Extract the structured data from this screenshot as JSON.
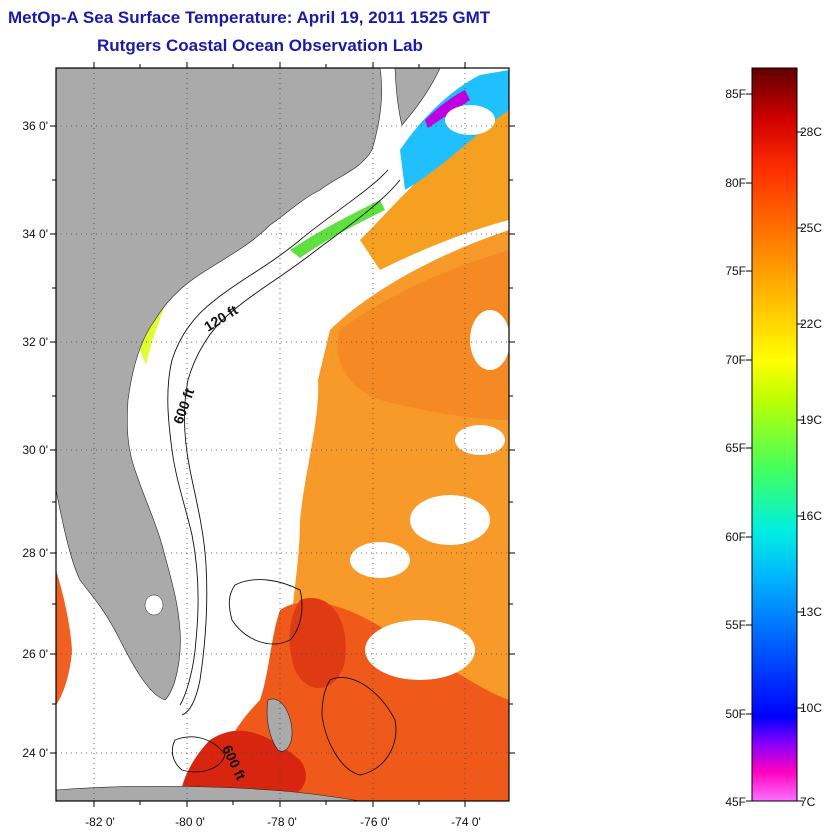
{
  "title": {
    "line1": "MetOp-A Sea Surface Temperature:  April 19, 2011 1525 GMT",
    "line2": "Rutgers Coastal Ocean Observation Lab"
  },
  "map": {
    "lat_labels": [
      "36 0'",
      "34 0'",
      "32 0'",
      "30 0'",
      "28 0'",
      "26 0'",
      "24 0'"
    ],
    "lon_labels": [
      "-82 0'",
      "-80 0'",
      "-78 0'",
      "-76 0'",
      "-74 0'"
    ],
    "isobath_labels": [
      "120 ft",
      "600 ft",
      "600 ft"
    ],
    "colors": {
      "land": "#aaaaaa",
      "cloud": "#ffffff",
      "gulf_stream": "#f07020",
      "shelf_water": "#f8a020"
    }
  },
  "colorbar": {
    "fahrenheit_labels": [
      "85F",
      "80F",
      "75F",
      "70F",
      "65F",
      "60F",
      "55F",
      "50F",
      "45F"
    ],
    "celsius_labels": [
      "28C",
      "25C",
      "22C",
      "19C",
      "16C",
      "13C",
      "10C",
      "7C"
    ],
    "colors": [
      "#6b0000",
      "#c00000",
      "#ff2000",
      "#ff7000",
      "#ffb000",
      "#ffff00",
      "#80ff00",
      "#00ffa0",
      "#00e0ff",
      "#0080ff",
      "#0000ff",
      "#8000ff",
      "#ff00c0",
      "#ff70ff"
    ]
  }
}
